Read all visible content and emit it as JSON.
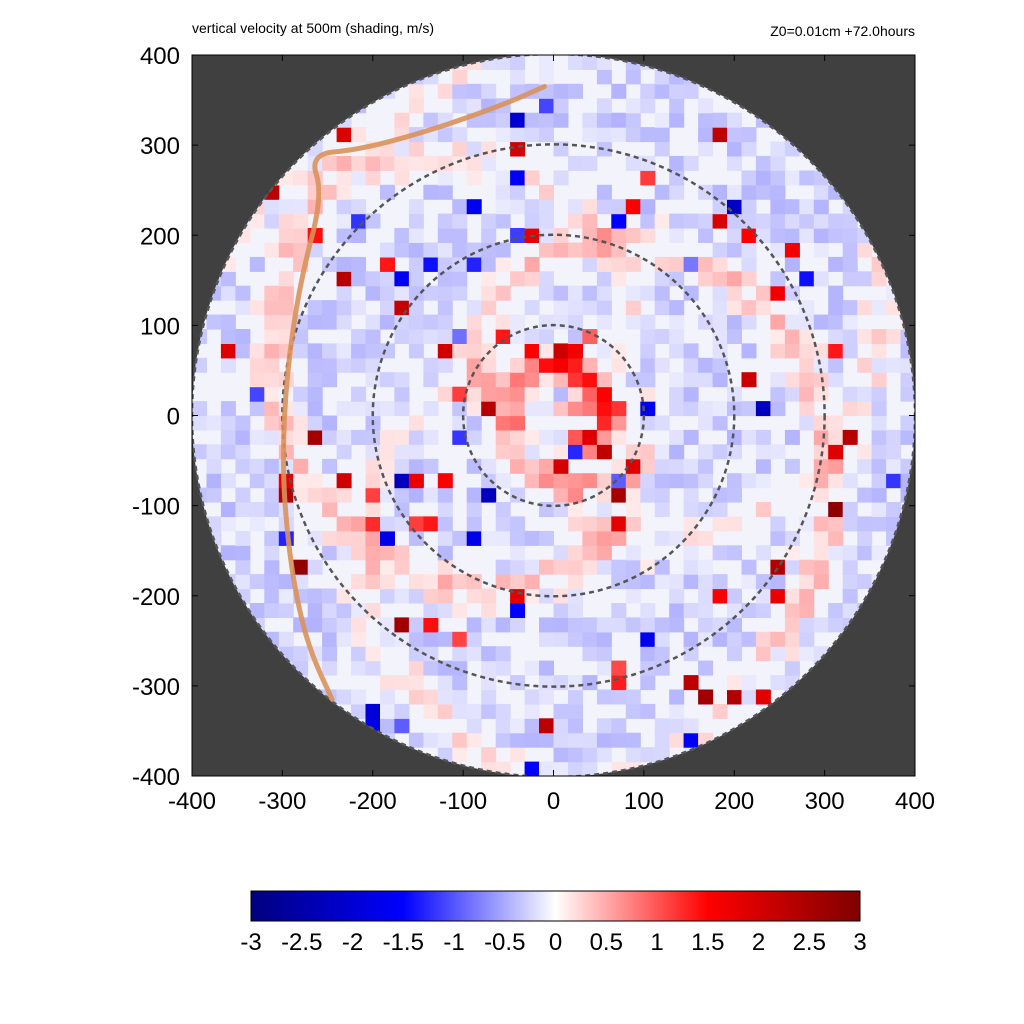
{
  "title": "vertical velocity at 500m (shading, m/s)",
  "subtitle": "Z0=0.01cm  +72.0hours",
  "chart_data": {
    "type": "heatmap",
    "title": "vertical velocity at 500m (shading, m/s)",
    "subtitle": "Z0=0.01cm  +72.0hours",
    "xlabel": "",
    "ylabel": "",
    "xlim": [
      -400,
      400
    ],
    "ylim": [
      -400,
      400
    ],
    "x_ticks": [
      "-400",
      "-300",
      "-200",
      "-100",
      "0",
      "100",
      "200",
      "300",
      "400"
    ],
    "y_ticks": [
      "-400",
      "-300",
      "-200",
      "-100",
      "0",
      "100",
      "200",
      "300",
      "400"
    ],
    "domain_radius": 400,
    "outside_domain_color": "#404040",
    "colormap": {
      "min": -3,
      "max": 3,
      "colors": [
        "#000080",
        "#0000ff",
        "#ffffff",
        "#ff0000",
        "#800000"
      ],
      "tick_labels": [
        "-3",
        "-2.5",
        "-2",
        "-1.5",
        "-1",
        "-0.5",
        "0",
        "0.5",
        "1",
        "1.5",
        "2",
        "2.5",
        "3"
      ]
    },
    "range_rings": [
      {
        "radius": 100,
        "style": "dashed",
        "color": "#555555"
      },
      {
        "radius": 200,
        "style": "dashed",
        "color": "#555555"
      },
      {
        "radius": 300,
        "style": "dashed",
        "color": "#555555"
      },
      {
        "radius": 400,
        "style": "dashed",
        "color": "#555555"
      }
    ],
    "track": {
      "color": "#d9925a",
      "points": [
        [
          -10,
          365
        ],
        [
          -55,
          345
        ],
        [
          -140,
          315
        ],
        [
          -215,
          295
        ],
        [
          -270,
          290
        ],
        [
          -255,
          245
        ],
        [
          -280,
          150
        ],
        [
          -295,
          50
        ],
        [
          -300,
          -50
        ],
        [
          -295,
          -130
        ],
        [
          -285,
          -200
        ],
        [
          -270,
          -260
        ],
        [
          -245,
          -315
        ]
      ]
    }
  }
}
